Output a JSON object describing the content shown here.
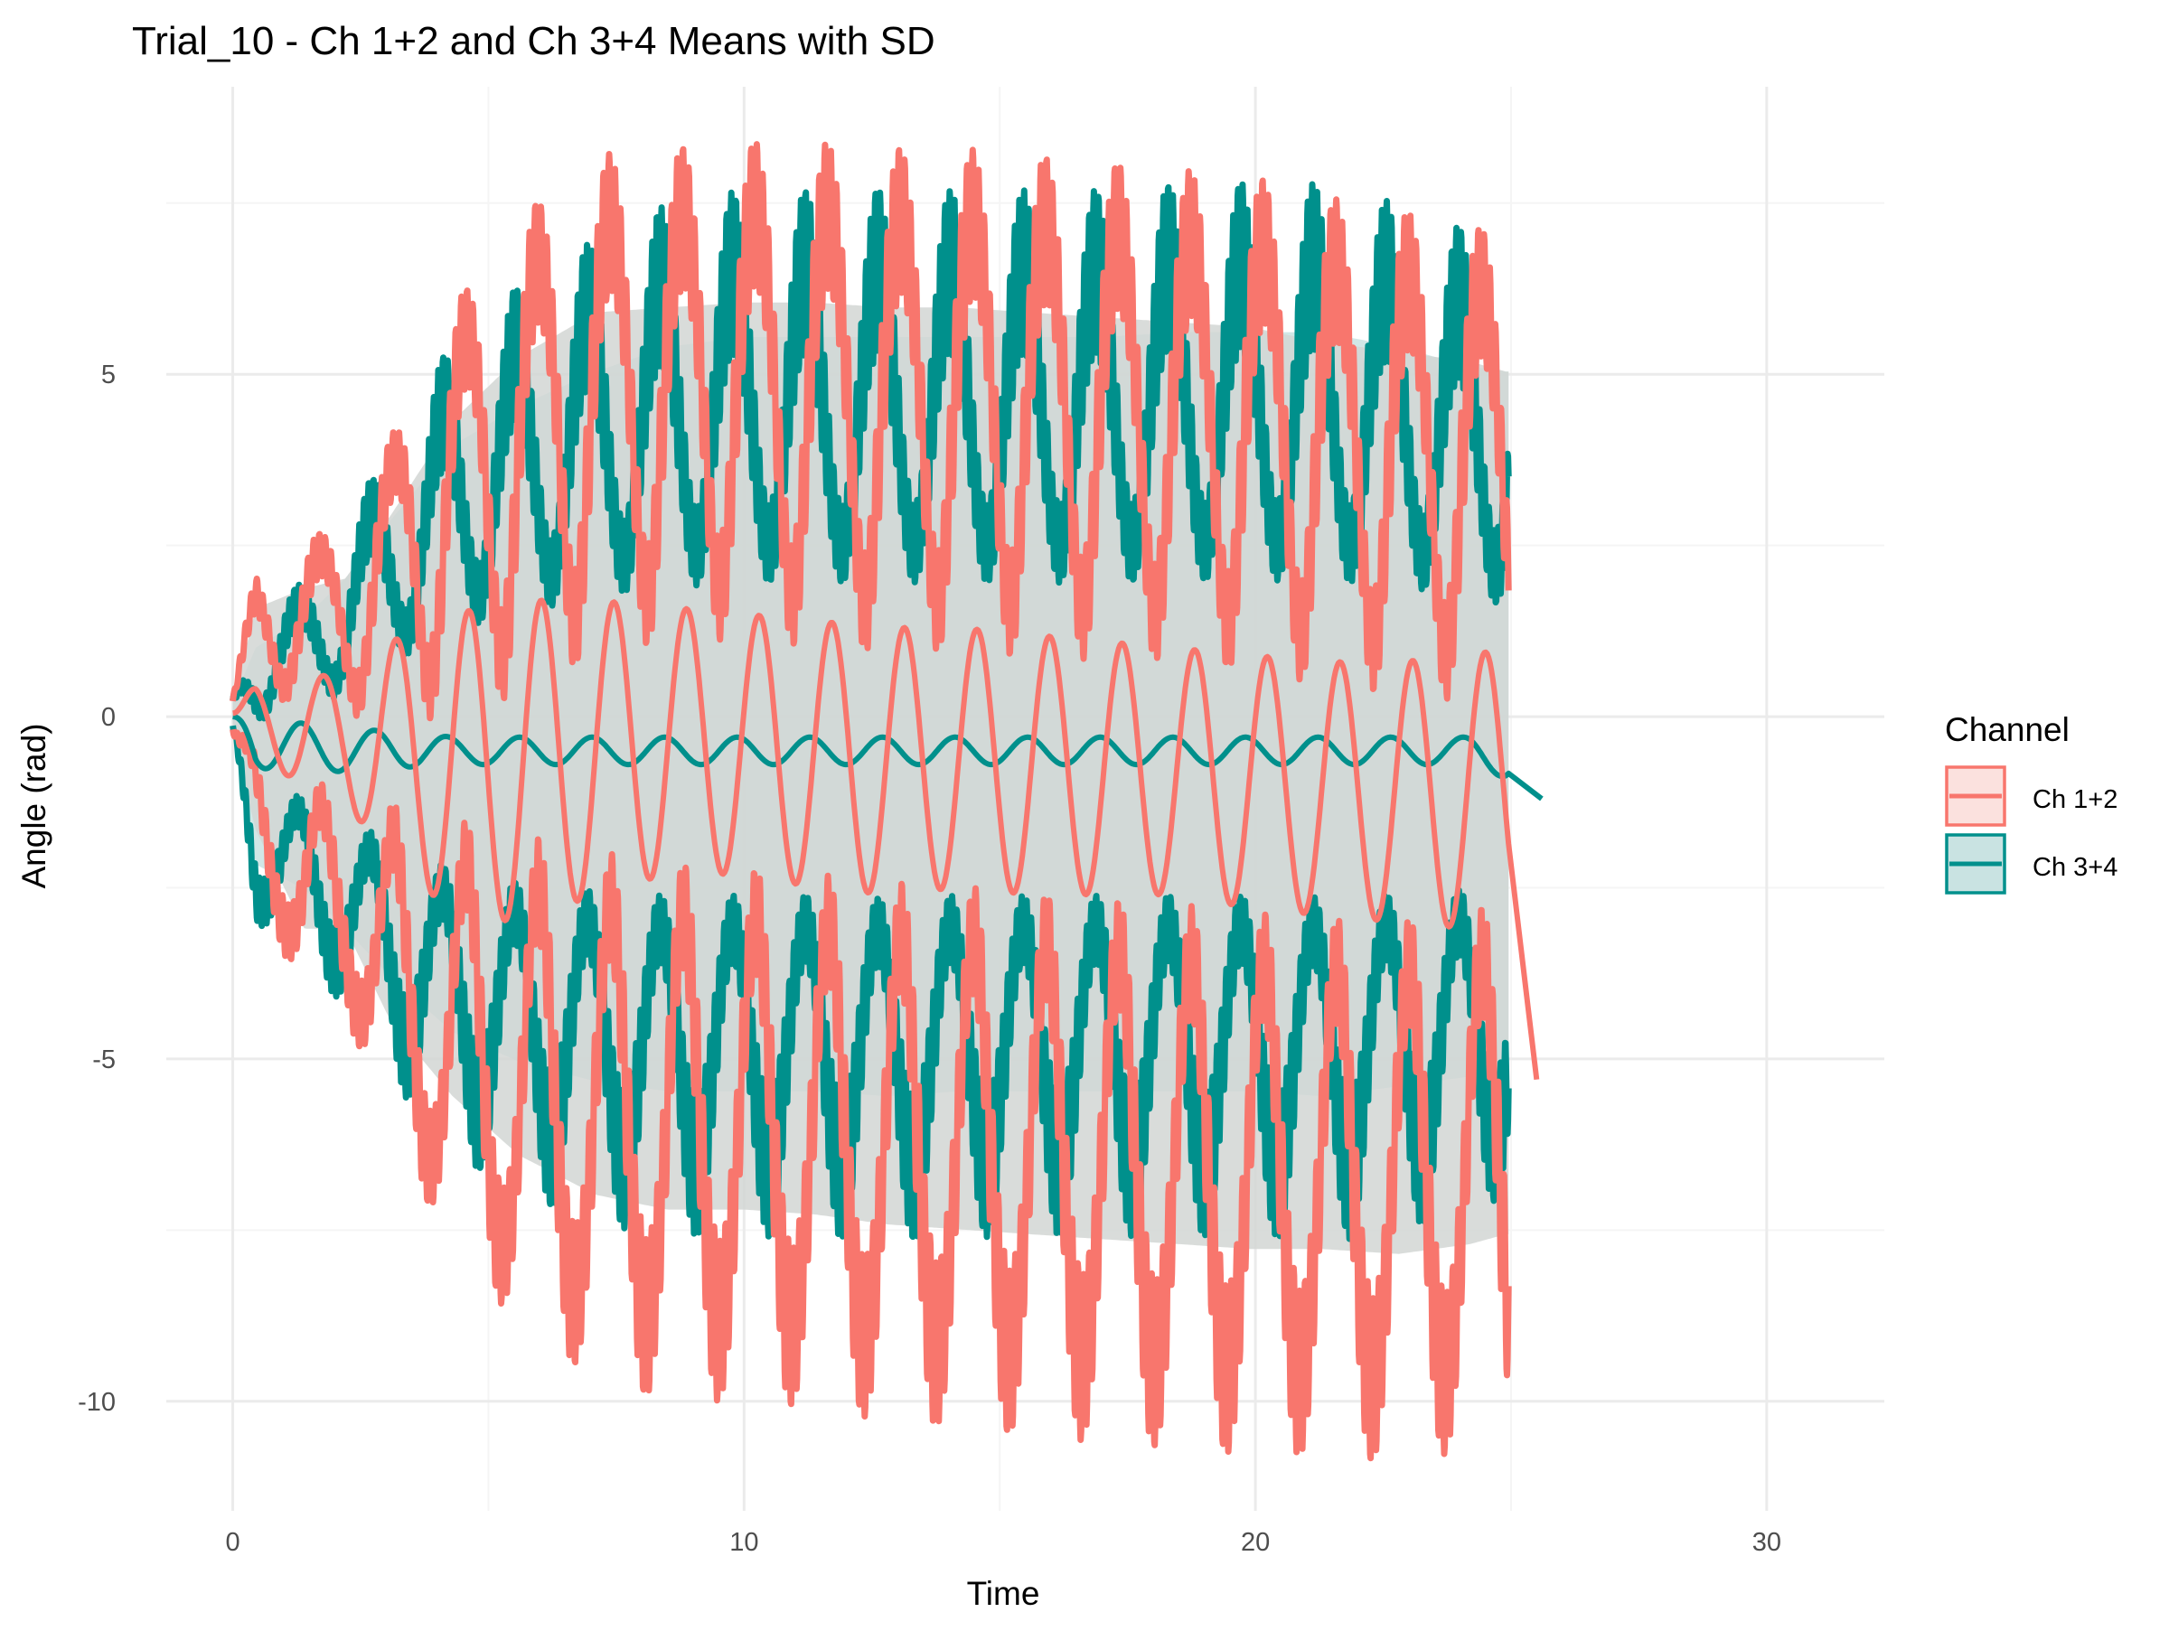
{
  "chart_data": {
    "type": "line",
    "title": "Trial_10 - Ch 1+2 and Ch 3+4 Means with SD",
    "xlabel": "Time",
    "ylabel": "Angle (rad)",
    "xlim": [
      -1.3,
      32.3
    ],
    "ylim": [
      -11.6,
      9.2
    ],
    "x_ticks": [
      0,
      10,
      20,
      30
    ],
    "x_tick_labels": [
      "0",
      "10",
      "20",
      "30"
    ],
    "y_ticks": [
      -10,
      -5,
      0,
      5
    ],
    "y_tick_labels": [
      "-10",
      "-5",
      "0",
      "5"
    ],
    "grid": true,
    "legend": {
      "title": "Channel",
      "position": "right",
      "entries": [
        "Ch 1+2",
        "Ch 3+4"
      ]
    },
    "colors": {
      "ch12": "#F8766D",
      "ch34": "#00908C",
      "ch12_ribbon_fill": "#FBE1DE",
      "ch34_ribbon_fill": "#C9E3E2",
      "ribbon_overlap": "#D2D6D4",
      "grid_major": "#EBEBEB",
      "grid_minor": "#F5F5F5",
      "text": "#000000",
      "axis_text": "#4D4D4D"
    },
    "series": [
      {
        "name": "Ch 1+2",
        "mean_cycle_times": [
          0,
          0.45,
          1.4,
          2.2,
          3.1,
          4.3,
          5.6,
          7.1,
          8.5,
          10.0,
          11.4,
          12.8,
          14.2,
          15.6,
          17.0,
          18.5,
          19.9,
          21.3,
          22.8,
          24.2,
          24.9
        ],
        "mean_peak": [
          0.1,
          0.45,
          0.6,
          0.6,
          1.1,
          1.5,
          1.7,
          1.7,
          1.6,
          1.5,
          1.4,
          1.3,
          1.3,
          1.2,
          1.1,
          1.0,
          0.9,
          0.8,
          0.8,
          0.9,
          1.0
        ],
        "mean_trough": [
          0.0,
          -0.6,
          -1.0,
          -1.3,
          -2.0,
          -2.9,
          -3.0,
          -2.6,
          -2.3,
          -2.3,
          -2.5,
          -2.6,
          -2.5,
          -2.6,
          -2.6,
          -2.6,
          -2.8,
          -2.9,
          -3.0,
          -3.1,
          -3.0
        ],
        "end_point": {
          "x": 25.5,
          "y": -5.3
        },
        "sd_band_max": [
          0.3,
          2.2,
          2.6,
          2.8,
          4.1,
          6.0,
          7.3,
          8.2,
          8.3,
          8.4,
          8.4,
          8.3,
          8.3,
          8.2,
          8.1,
          8.0,
          7.9,
          7.6,
          7.4,
          7.2,
          7.0
        ],
        "sd_band_min": [
          -0.4,
          -2.3,
          -4.3,
          -4.3,
          -6.2,
          -7.7,
          -8.9,
          -9.7,
          -10.0,
          -10.0,
          -10.1,
          -10.3,
          -10.4,
          -10.5,
          -10.6,
          -10.7,
          -10.8,
          -10.8,
          -10.9,
          -10.7,
          -10.5
        ]
      },
      {
        "name": "Ch 3+4",
        "mean_cycle_times": [
          0,
          0.45,
          1.4,
          2.2,
          3.1,
          4.3,
          5.6,
          7.1,
          8.5,
          10.0,
          11.4,
          12.8,
          14.2,
          15.6,
          17.0,
          18.5,
          19.9,
          21.3,
          22.8,
          24.2,
          24.9
        ],
        "mean_peak": [
          0.0,
          0.0,
          -0.1,
          -0.2,
          -0.2,
          -0.3,
          -0.3,
          -0.3,
          -0.3,
          -0.3,
          -0.3,
          -0.3,
          -0.3,
          -0.3,
          -0.3,
          -0.3,
          -0.3,
          -0.3,
          -0.3,
          -0.3,
          -0.4
        ],
        "mean_trough": [
          0.0,
          -0.75,
          -0.8,
          -0.8,
          -0.75,
          -0.7,
          -0.7,
          -0.7,
          -0.7,
          -0.7,
          -0.7,
          -0.7,
          -0.7,
          -0.7,
          -0.7,
          -0.7,
          -0.7,
          -0.7,
          -0.7,
          -0.7,
          -0.9
        ],
        "end_point": {
          "x": 25.6,
          "y": -1.2
        },
        "sd_band_max": [
          0.3,
          1.4,
          2.0,
          2.8,
          4.0,
          5.5,
          6.3,
          7.0,
          7.5,
          7.7,
          7.7,
          7.7,
          7.7,
          7.7,
          7.7,
          7.8,
          7.8,
          7.8,
          7.5,
          7.1,
          7.0
        ],
        "sd_band_min": [
          -0.3,
          -3.0,
          -3.5,
          -4.3,
          -5.3,
          -6.4,
          -7.0,
          -7.4,
          -7.6,
          -7.6,
          -7.6,
          -7.7,
          -7.6,
          -7.6,
          -7.6,
          -7.6,
          -7.6,
          -7.7,
          -7.5,
          -7.3,
          -7.0
        ]
      }
    ]
  }
}
